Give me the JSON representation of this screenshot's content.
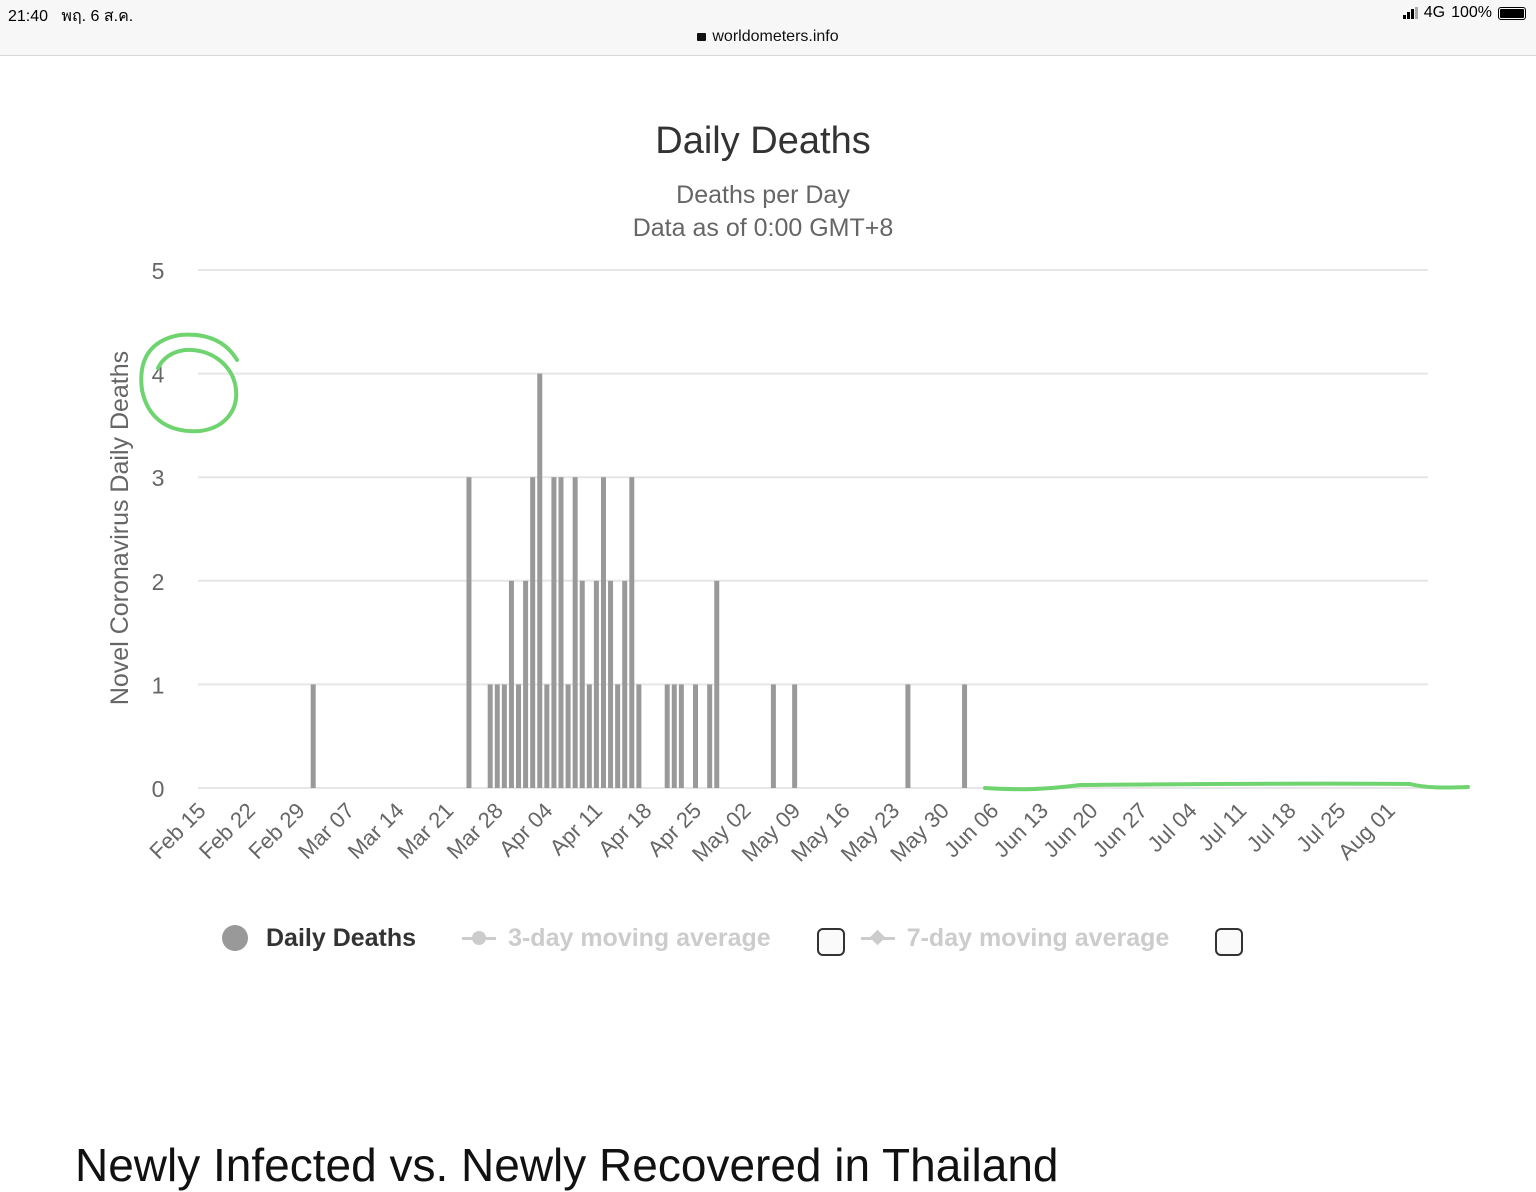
{
  "status_bar": {
    "time": "21:40",
    "date": "พฤ. 6 ส.ค.",
    "network": "4G",
    "battery": "100%"
  },
  "browser": {
    "url": "worldometers.info"
  },
  "chart_data": {
    "type": "bar",
    "title": "Daily Deaths",
    "subtitle": "Deaths per Day",
    "subtitle2": "Data as of 0:00 GMT+8",
    "ylabel": "Novel Coronavirus Daily Deaths",
    "xlabel": "",
    "ylim": [
      0,
      5
    ],
    "yticks": [
      0,
      1,
      2,
      3,
      4,
      5
    ],
    "x_start": "2020-02-15",
    "x_end": "2020-08-05",
    "xtick_labels": [
      "Feb 15",
      "Feb 22",
      "Feb 29",
      "Mar 07",
      "Mar 14",
      "Mar 21",
      "Mar 28",
      "Apr 04",
      "Apr 11",
      "Apr 18",
      "Apr 25",
      "May 02",
      "May 09",
      "May 16",
      "May 23",
      "May 30",
      "Jun 06",
      "Jun 13",
      "Jun 20",
      "Jun 27",
      "Jul 04",
      "Jul 11",
      "Jul 18",
      "Jul 25",
      "Aug 01"
    ],
    "grid": true,
    "series": [
      {
        "name": "Daily Deaths",
        "color": "#999999",
        "nonzero_points": [
          [
            "2020-03-01",
            1
          ],
          [
            "2020-03-23",
            3
          ],
          [
            "2020-03-26",
            1
          ],
          [
            "2020-03-27",
            1
          ],
          [
            "2020-03-28",
            1
          ],
          [
            "2020-03-29",
            2
          ],
          [
            "2020-03-30",
            1
          ],
          [
            "2020-03-31",
            2
          ],
          [
            "2020-04-01",
            3
          ],
          [
            "2020-04-02",
            4
          ],
          [
            "2020-04-03",
            1
          ],
          [
            "2020-04-04",
            3
          ],
          [
            "2020-04-05",
            3
          ],
          [
            "2020-04-06",
            1
          ],
          [
            "2020-04-07",
            3
          ],
          [
            "2020-04-08",
            2
          ],
          [
            "2020-04-09",
            1
          ],
          [
            "2020-04-10",
            2
          ],
          [
            "2020-04-11",
            3
          ],
          [
            "2020-04-12",
            2
          ],
          [
            "2020-04-13",
            1
          ],
          [
            "2020-04-14",
            2
          ],
          [
            "2020-04-15",
            3
          ],
          [
            "2020-04-16",
            1
          ],
          [
            "2020-04-20",
            1
          ],
          [
            "2020-04-21",
            1
          ],
          [
            "2020-04-22",
            1
          ],
          [
            "2020-04-24",
            1
          ],
          [
            "2020-04-26",
            1
          ],
          [
            "2020-04-27",
            2
          ],
          [
            "2020-05-05",
            1
          ],
          [
            "2020-05-08",
            1
          ],
          [
            "2020-05-24",
            1
          ],
          [
            "2020-06-01",
            1
          ]
        ]
      }
    ],
    "legend": {
      "placement": "bottom",
      "items": [
        {
          "label": "Daily Deaths",
          "active": true
        },
        {
          "label": "3-day moving average",
          "active": false
        },
        {
          "label": "7-day moving average",
          "active": false
        }
      ]
    },
    "annotation_color": "#6fd46f"
  },
  "bottom_heading": "Newly Infected vs. Newly Recovered in Thailand"
}
